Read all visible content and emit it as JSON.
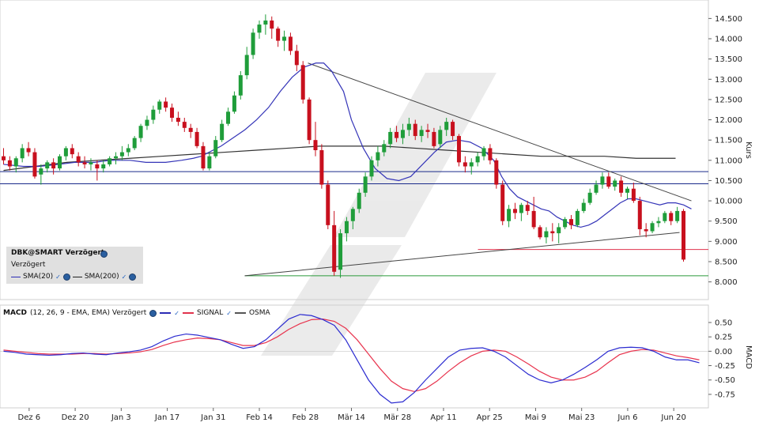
{
  "legend": {
    "symbol": "DBK@SMART Verzögert",
    "subtitle": "Verzögert",
    "sma20_label": "SMA(20)",
    "sma200_label": "SMA(200)"
  },
  "macd_legend": {
    "name": "MACD",
    "params": "(12, 26, 9 - EMA, EMA) Verzögert",
    "signal_label": "SIGNAL",
    "osma_label": "OSMA"
  },
  "colors": {
    "up_candle": "#1f9d3a",
    "down_candle": "#c8101e",
    "sma20": "#3535b8",
    "sma200": "#333333",
    "macd": "#2b2bd0",
    "signal": "#e8334d",
    "hline": "#1a2a8a",
    "support_red": "#e0334d",
    "support_green": "#2a9a3a"
  },
  "chart_data": [
    {
      "type": "candlestick",
      "title": "DBK@SMART Verzögert",
      "ylabel": "Kurs",
      "ylim": [
        7.7,
        14.8
      ],
      "yticks": [
        "8.000",
        "8.500",
        "9.000",
        "9.500",
        "10.000",
        "10.500",
        "11.000",
        "11.500",
        "12.000",
        "12.500",
        "13.000",
        "13.500",
        "14.000",
        "14.500"
      ],
      "yticks_values": [
        8.0,
        8.5,
        9.0,
        9.5,
        10.0,
        10.5,
        11.0,
        11.5,
        12.0,
        12.5,
        13.0,
        13.5,
        14.0,
        14.5
      ],
      "xticks": [
        "Dez 6",
        "Dez 20",
        "Jan 3",
        "Jan 17",
        "Jan 31",
        "Feb 14",
        "Feb 28",
        "Mär 14",
        "Mär 28",
        "Apr 11",
        "Apr 25",
        "Mai 9",
        "Mai 23",
        "Jun 6",
        "Jun 20"
      ],
      "xtick_index": [
        5,
        14,
        23,
        32,
        41,
        50,
        59,
        68,
        77,
        86,
        95,
        104,
        113,
        122,
        131
      ],
      "candles": [
        [
          11.1,
          11.3,
          10.9,
          11.0
        ],
        [
          11.0,
          11.1,
          10.75,
          10.85
        ],
        [
          10.85,
          11.1,
          10.7,
          11.05
        ],
        [
          11.05,
          11.4,
          10.95,
          11.3
        ],
        [
          11.3,
          11.45,
          11.1,
          11.2
        ],
        [
          11.2,
          11.3,
          10.55,
          10.6
        ],
        [
          10.65,
          10.9,
          10.4,
          10.8
        ],
        [
          10.8,
          11.0,
          10.7,
          10.95
        ],
        [
          10.95,
          11.05,
          10.65,
          10.8
        ],
        [
          10.8,
          11.15,
          10.75,
          11.1
        ],
        [
          11.1,
          11.35,
          11.0,
          11.3
        ],
        [
          11.3,
          11.4,
          11.05,
          11.15
        ],
        [
          11.1,
          11.2,
          10.85,
          10.95
        ],
        [
          10.95,
          11.1,
          10.8,
          10.9
        ],
        [
          10.9,
          11.05,
          10.75,
          10.95
        ],
        [
          10.9,
          11.0,
          10.5,
          10.8
        ],
        [
          10.8,
          11.0,
          10.7,
          10.9
        ],
        [
          10.9,
          11.1,
          10.85,
          11.05
        ],
        [
          11.05,
          11.2,
          10.9,
          11.1
        ],
        [
          11.1,
          11.35,
          11.0,
          11.2
        ],
        [
          11.2,
          11.4,
          11.1,
          11.3
        ],
        [
          11.3,
          11.6,
          11.25,
          11.55
        ],
        [
          11.55,
          11.9,
          11.45,
          11.85
        ],
        [
          11.85,
          12.1,
          11.75,
          12.0
        ],
        [
          12.0,
          12.35,
          11.9,
          12.25
        ],
        [
          12.25,
          12.5,
          12.15,
          12.45
        ],
        [
          12.45,
          12.55,
          12.2,
          12.3
        ],
        [
          12.3,
          12.4,
          11.95,
          12.05
        ],
        [
          12.05,
          12.2,
          11.85,
          11.95
        ],
        [
          11.95,
          12.05,
          11.7,
          11.8
        ],
        [
          11.8,
          11.9,
          11.55,
          11.7
        ],
        [
          11.7,
          11.8,
          11.3,
          11.35
        ],
        [
          11.35,
          11.45,
          10.75,
          10.8
        ],
        [
          10.8,
          11.2,
          10.75,
          11.1
        ],
        [
          11.1,
          11.6,
          11.05,
          11.5
        ],
        [
          11.5,
          12.0,
          11.45,
          11.9
        ],
        [
          11.9,
          12.3,
          11.85,
          12.2
        ],
        [
          12.2,
          12.7,
          12.15,
          12.6
        ],
        [
          12.6,
          13.2,
          12.5,
          13.1
        ],
        [
          13.1,
          13.8,
          13.0,
          13.6
        ],
        [
          13.6,
          14.25,
          13.5,
          14.15
        ],
        [
          14.15,
          14.45,
          14.0,
          14.35
        ],
        [
          14.35,
          14.6,
          14.1,
          14.45
        ],
        [
          14.45,
          14.55,
          14.0,
          14.25
        ],
        [
          14.25,
          14.3,
          13.8,
          13.95
        ],
        [
          13.95,
          14.2,
          13.7,
          14.05
        ],
        [
          14.05,
          14.15,
          13.6,
          13.7
        ],
        [
          13.7,
          13.85,
          13.2,
          13.35
        ],
        [
          13.35,
          13.45,
          12.4,
          12.5
        ],
        [
          12.5,
          12.55,
          11.4,
          11.5
        ],
        [
          11.5,
          11.95,
          11.1,
          11.25
        ],
        [
          11.25,
          11.4,
          10.3,
          10.4
        ],
        [
          10.4,
          10.5,
          9.3,
          9.4
        ],
        [
          9.4,
          9.75,
          8.15,
          8.25
        ],
        [
          8.3,
          9.3,
          8.1,
          9.2
        ],
        [
          9.2,
          9.6,
          9.0,
          9.5
        ],
        [
          9.5,
          9.85,
          9.3,
          9.8
        ],
        [
          9.8,
          10.3,
          9.7,
          10.2
        ],
        [
          10.2,
          10.7,
          10.1,
          10.6
        ],
        [
          10.6,
          11.1,
          10.5,
          11.0
        ],
        [
          11.0,
          11.35,
          10.85,
          11.2
        ],
        [
          11.2,
          11.5,
          11.1,
          11.4
        ],
        [
          11.4,
          11.8,
          11.3,
          11.7
        ],
        [
          11.7,
          11.85,
          11.45,
          11.55
        ],
        [
          11.55,
          11.9,
          11.4,
          11.75
        ],
        [
          11.75,
          12.05,
          11.6,
          11.9
        ],
        [
          11.9,
          12.0,
          11.5,
          11.6
        ],
        [
          11.6,
          11.85,
          11.45,
          11.75
        ],
        [
          11.75,
          11.9,
          11.55,
          11.7
        ],
        [
          11.7,
          11.8,
          11.3,
          11.35
        ],
        [
          11.4,
          11.85,
          11.3,
          11.75
        ],
        [
          11.75,
          12.05,
          11.6,
          11.95
        ],
        [
          11.95,
          12.0,
          11.5,
          11.6
        ],
        [
          11.6,
          11.65,
          10.85,
          10.95
        ],
        [
          10.95,
          11.1,
          10.7,
          10.85
        ],
        [
          10.85,
          11.05,
          10.65,
          10.95
        ],
        [
          10.95,
          11.2,
          10.85,
          11.1
        ],
        [
          11.1,
          11.35,
          11.0,
          11.3
        ],
        [
          11.3,
          11.4,
          10.9,
          11.0
        ],
        [
          11.0,
          11.05,
          10.3,
          10.4
        ],
        [
          10.4,
          10.5,
          9.4,
          9.5
        ],
        [
          9.5,
          9.9,
          9.35,
          9.8
        ],
        [
          9.8,
          9.95,
          9.55,
          9.7
        ],
        [
          9.7,
          9.95,
          9.5,
          9.9
        ],
        [
          9.9,
          10.0,
          9.65,
          9.75
        ],
        [
          9.75,
          10.1,
          9.3,
          9.35
        ],
        [
          9.35,
          9.4,
          9.05,
          9.1
        ],
        [
          9.1,
          9.35,
          8.95,
          9.25
        ],
        [
          9.25,
          9.45,
          9.0,
          9.2
        ],
        [
          9.2,
          9.45,
          8.95,
          9.35
        ],
        [
          9.35,
          9.6,
          9.3,
          9.55
        ],
        [
          9.55,
          9.65,
          9.3,
          9.4
        ],
        [
          9.4,
          9.8,
          9.35,
          9.75
        ],
        [
          9.75,
          10.05,
          9.7,
          9.95
        ],
        [
          9.95,
          10.3,
          9.9,
          10.2
        ],
        [
          10.2,
          10.5,
          10.15,
          10.4
        ],
        [
          10.4,
          10.7,
          10.3,
          10.6
        ],
        [
          10.6,
          10.7,
          10.3,
          10.35
        ],
        [
          10.35,
          10.55,
          10.25,
          10.5
        ],
        [
          10.5,
          10.6,
          10.1,
          10.2
        ],
        [
          10.2,
          10.35,
          10.05,
          10.3
        ],
        [
          10.3,
          10.45,
          9.95,
          10.0
        ],
        [
          10.0,
          10.1,
          9.15,
          9.3
        ],
        [
          9.3,
          9.45,
          9.1,
          9.25
        ],
        [
          9.25,
          9.5,
          9.2,
          9.45
        ],
        [
          9.45,
          9.6,
          9.35,
          9.5
        ],
        [
          9.5,
          9.75,
          9.45,
          9.7
        ],
        [
          9.7,
          9.75,
          9.4,
          9.5
        ],
        [
          9.5,
          9.85,
          9.45,
          9.75
        ],
        [
          9.75,
          9.8,
          8.5,
          8.55
        ]
      ],
      "sma20": [
        10.9,
        10.85,
        10.85,
        10.9,
        10.95,
        10.95,
        11.0,
        11.0,
        10.95,
        10.95,
        11.0,
        11.05,
        11.1,
        11.2,
        11.35,
        11.55,
        11.75,
        12.0,
        12.3,
        12.7,
        13.05,
        13.3,
        13.4,
        13.4,
        13.2,
        12.7,
        12.0,
        11.3,
        10.8,
        10.55,
        10.5,
        10.6,
        10.9,
        11.2,
        11.45,
        11.5,
        11.45,
        11.3,
        11.0,
        10.6,
        10.3,
        10.1,
        10.0,
        9.9,
        9.8,
        9.75,
        9.6,
        9.5,
        9.4,
        9.35,
        9.4,
        9.5,
        9.65,
        9.8,
        9.95,
        10.05,
        10.05,
        10.0,
        9.95,
        9.9,
        9.95,
        9.95,
        9.9,
        9.8
      ],
      "sma20_index": [
        0,
        5,
        9,
        14,
        18,
        23,
        27,
        32,
        36,
        41,
        45,
        48,
        50,
        52,
        55,
        58,
        61,
        64,
        67,
        70,
        73,
        76,
        79,
        81,
        83,
        86,
        88,
        91,
        94,
        97,
        100,
        103,
        106,
        109,
        112,
        115,
        118,
        121,
        124,
        126,
        128,
        130,
        132,
        134,
        136,
        138,
        140,
        142,
        144,
        146,
        148,
        150,
        152,
        154,
        156,
        158,
        160,
        162,
        164,
        166,
        168,
        170,
        172,
        174
      ],
      "sma200": [
        10.75,
        10.85,
        10.95,
        11.0,
        11.05,
        11.1,
        11.15,
        11.2,
        11.25,
        11.3,
        11.35,
        11.35,
        11.35,
        11.3,
        11.25,
        11.2,
        11.15,
        11.1,
        11.1,
        11.1,
        11.05,
        11.05
      ],
      "sma200_index": [
        0,
        8,
        16,
        24,
        32,
        40,
        48,
        56,
        64,
        72,
        80,
        88,
        96,
        104,
        112,
        120,
        128,
        136,
        144,
        152,
        160,
        170
      ],
      "hlines": [
        10.72,
        10.42,
        8.8,
        8.15
      ],
      "trendlines": [
        {
          "from": [
            61,
            8.15
          ],
          "to": [
            171,
            9.22
          ]
        },
        {
          "from": [
            77,
            13.4
          ],
          "to": [
            174,
            10.0
          ]
        }
      ]
    },
    {
      "type": "line",
      "title": "MACD",
      "ylabel": "MACD",
      "ylim": [
        -0.93,
        0.72
      ],
      "yticks": [
        "-0.75",
        "-0.50",
        "-0.25",
        "0.00",
        "0.25",
        "0.50"
      ],
      "yticks_values": [
        -0.75,
        -0.5,
        -0.25,
        0.0,
        0.25,
        0.5
      ],
      "series": [
        {
          "name": "MACD",
          "values": [
            0.0,
            -0.02,
            -0.05,
            -0.06,
            -0.07,
            -0.06,
            -0.04,
            -0.03,
            -0.05,
            -0.06,
            -0.03,
            -0.01,
            0.02,
            0.08,
            0.18,
            0.26,
            0.3,
            0.28,
            0.24,
            0.2,
            0.12,
            0.05,
            0.08,
            0.2,
            0.38,
            0.56,
            0.64,
            0.62,
            0.55,
            0.45,
            0.2,
            -0.15,
            -0.5,
            -0.75,
            -0.9,
            -0.88,
            -0.72,
            -0.5,
            -0.3,
            -0.1,
            0.02,
            0.05,
            0.06,
            0.0,
            -0.1,
            -0.25,
            -0.4,
            -0.5,
            -0.55,
            -0.5,
            -0.4,
            -0.28,
            -0.15,
            0.0,
            0.06,
            0.07,
            0.06,
            0.0,
            -0.1,
            -0.15,
            -0.15,
            -0.2
          ]
        },
        {
          "name": "SIGNAL",
          "values": [
            0.02,
            0.0,
            -0.02,
            -0.04,
            -0.05,
            -0.05,
            -0.05,
            -0.04,
            -0.04,
            -0.05,
            -0.04,
            -0.03,
            -0.01,
            0.03,
            0.1,
            0.16,
            0.2,
            0.23,
            0.22,
            0.2,
            0.15,
            0.1,
            0.1,
            0.15,
            0.25,
            0.38,
            0.48,
            0.55,
            0.56,
            0.52,
            0.4,
            0.2,
            -0.05,
            -0.3,
            -0.52,
            -0.65,
            -0.7,
            -0.65,
            -0.52,
            -0.35,
            -0.2,
            -0.08,
            0.0,
            0.02,
            0.0,
            -0.1,
            -0.22,
            -0.35,
            -0.45,
            -0.5,
            -0.5,
            -0.45,
            -0.35,
            -0.2,
            -0.06,
            0.0,
            0.03,
            0.02,
            -0.03,
            -0.08,
            -0.11,
            -0.15
          ]
        },
        {
          "name": "OSMA",
          "values": []
        }
      ]
    }
  ]
}
